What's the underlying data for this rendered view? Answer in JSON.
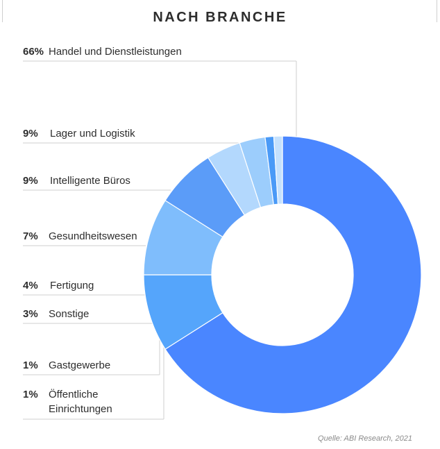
{
  "chart_data": {
    "type": "pie",
    "title": "NACH BRANCHE",
    "source": "Quelle: ABI Research, 2021",
    "categories": [
      "Handel und Dienstleistungen",
      "Lager und Logistik",
      "Intelligente Büros",
      "Gesundheitswesen",
      "Fertigung",
      "Sonstige",
      "Gastgewerbe",
      "Öffentliche Einrichtungen"
    ],
    "values": [
      66,
      9,
      9,
      7,
      4,
      3,
      1,
      1
    ],
    "labels": [
      "66%",
      "9%",
      "9%",
      "7%",
      "4%",
      "3%",
      "1%",
      "1%"
    ],
    "colors": [
      "#4a86ff",
      "#55a5fb",
      "#7fbdfc",
      "#5b9cf8",
      "#b3d8fd",
      "#9ccdfc",
      "#4a9af7",
      "#c5e1fd"
    ],
    "style": "donut"
  }
}
